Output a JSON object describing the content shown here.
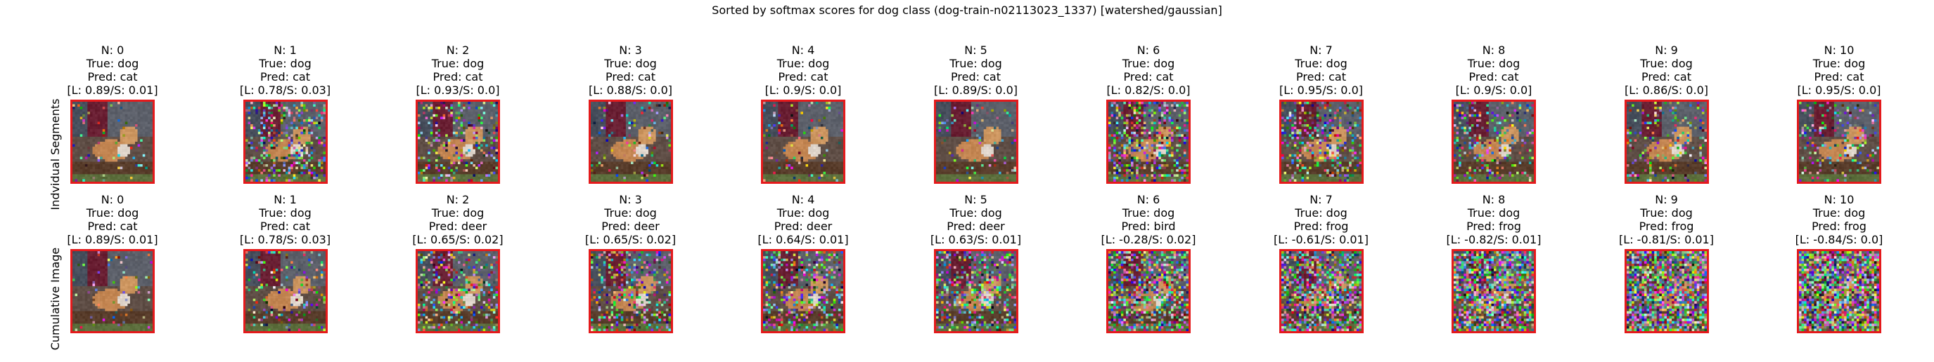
{
  "title": "Sorted by softmax scores for dog class (dog-train-n02113023_1337) [watershed/gaussian]",
  "rows": [
    {
      "label": "Indvidual Segments",
      "panels": [
        {
          "n": "N: 0",
          "true": "True: dog",
          "pred": "Pred: cat",
          "scores": "[L: 0.89/S: 0.01]",
          "noise": 0.05
        },
        {
          "n": "N: 1",
          "true": "True: dog",
          "pred": "Pred: cat",
          "scores": "[L: 0.78/S: 0.03]",
          "noise": 0.35
        },
        {
          "n": "N: 2",
          "true": "True: dog",
          "pred": "Pred: cat",
          "scores": "[L: 0.93/S: 0.0]",
          "noise": 0.2
        },
        {
          "n": "N: 3",
          "true": "True: dog",
          "pred": "Pred: cat",
          "scores": "[L: 0.88/S: 0.0]",
          "noise": 0.1
        },
        {
          "n": "N: 4",
          "true": "True: dog",
          "pred": "Pred: cat",
          "scores": "[L: 0.9/S: 0.0]",
          "noise": 0.08
        },
        {
          "n": "N: 5",
          "true": "True: dog",
          "pred": "Pred: cat",
          "scores": "[L: 0.89/S: 0.0]",
          "noise": 0.08
        },
        {
          "n": "N: 6",
          "true": "True: dog",
          "pred": "Pred: cat",
          "scores": "[L: 0.82/S: 0.0]",
          "noise": 0.4
        },
        {
          "n": "N: 7",
          "true": "True: dog",
          "pred": "Pred: cat",
          "scores": "[L: 0.95/S: 0.0]",
          "noise": 0.3
        },
        {
          "n": "N: 8",
          "true": "True: dog",
          "pred": "Pred: cat",
          "scores": "[L: 0.9/S: 0.0]",
          "noise": 0.25
        },
        {
          "n": "N: 9",
          "true": "True: dog",
          "pred": "Pred: cat",
          "scores": "[L: 0.86/S: 0.0]",
          "noise": 0.2
        },
        {
          "n": "N: 10",
          "true": "True: dog",
          "pred": "Pred: cat",
          "scores": "[L: 0.95/S: 0.0]",
          "noise": 0.2
        }
      ]
    },
    {
      "label": "Cumulative Image",
      "panels": [
        {
          "n": "N: 0",
          "true": "True: dog",
          "pred": "Pred: cat",
          "scores": "[L: 0.89/S: 0.01]",
          "noise": 0.05
        },
        {
          "n": "N: 1",
          "true": "True: dog",
          "pred": "Pred: cat",
          "scores": "[L: 0.78/S: 0.03]",
          "noise": 0.15
        },
        {
          "n": "N: 2",
          "true": "True: dog",
          "pred": "Pred: deer",
          "scores": "[L: 0.65/S: 0.02]",
          "noise": 0.25
        },
        {
          "n": "N: 3",
          "true": "True: dog",
          "pred": "Pred: deer",
          "scores": "[L: 0.65/S: 0.02]",
          "noise": 0.3
        },
        {
          "n": "N: 4",
          "true": "True: dog",
          "pred": "Pred: deer",
          "scores": "[L: 0.64/S: 0.01]",
          "noise": 0.35
        },
        {
          "n": "N: 5",
          "true": "True: dog",
          "pred": "Pred: deer",
          "scores": "[L: 0.63/S: 0.01]",
          "noise": 0.4
        },
        {
          "n": "N: 6",
          "true": "True: dog",
          "pred": "Pred: bird",
          "scores": "[L: -0.28/S: 0.02]",
          "noise": 0.55
        },
        {
          "n": "N: 7",
          "true": "True: dog",
          "pred": "Pred: frog",
          "scores": "[L: -0.61/S: 0.01]",
          "noise": 0.65
        },
        {
          "n": "N: 8",
          "true": "True: dog",
          "pred": "Pred: frog",
          "scores": "[L: -0.82/S: 0.01]",
          "noise": 0.75
        },
        {
          "n": "N: 9",
          "true": "True: dog",
          "pred": "Pred: frog",
          "scores": "[L: -0.81/S: 0.01]",
          "noise": 0.8
        },
        {
          "n": "N: 10",
          "true": "True: dog",
          "pred": "Pred: frog",
          "scores": "[L: -0.84/S: 0.0]",
          "noise": 0.85
        }
      ]
    }
  ],
  "colors": {
    "border": "#e41a1c",
    "background": "#ffffff",
    "text": "#000000"
  }
}
